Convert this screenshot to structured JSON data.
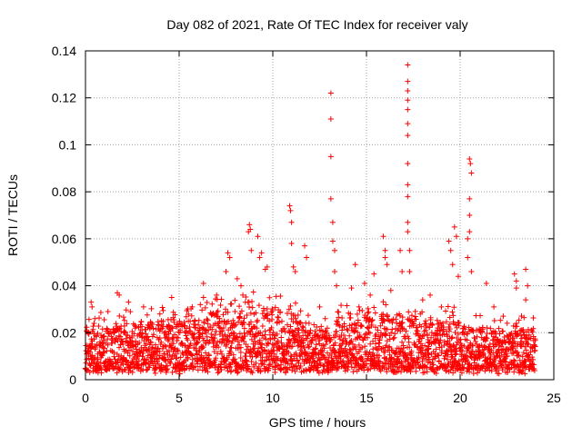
{
  "chart_data": {
    "type": "scatter",
    "title": "Day 082 of 2021, Rate Of TEC Index for receiver valy",
    "xlabel": "GPS time / hours",
    "ylabel": "ROTI / TECUs",
    "xlim": [
      0,
      25
    ],
    "ylim": [
      0,
      0.14
    ],
    "xticks": [
      0,
      5,
      10,
      15,
      20,
      25
    ],
    "yticks": [
      0,
      0.02,
      0.04,
      0.06,
      0.08,
      0.1,
      0.12,
      0.14
    ],
    "xtick_labels": [
      "0",
      "5",
      "10",
      "15",
      "20",
      "25"
    ],
    "ytick_labels": [
      "0",
      "0.02",
      "0.04",
      "0.06",
      "0.08",
      "0.1",
      "0.12",
      "0.14"
    ],
    "grid": true,
    "marker": "+",
    "color": "#ff0000",
    "series": [
      {
        "name": "ROTI",
        "points": [
          [
            0.3,
            0.033
          ],
          [
            0.35,
            0.031
          ],
          [
            0.5,
            0.026
          ],
          [
            1.2,
            0.029
          ],
          [
            1.7,
            0.037
          ],
          [
            1.8,
            0.036
          ],
          [
            2.3,
            0.033
          ],
          [
            3.1,
            0.031
          ],
          [
            4.6,
            0.035
          ],
          [
            5.7,
            0.031
          ],
          [
            6.3,
            0.041
          ],
          [
            6.3,
            0.035
          ],
          [
            7.0,
            0.036
          ],
          [
            7.5,
            0.046
          ],
          [
            7.6,
            0.054
          ],
          [
            7.7,
            0.052
          ],
          [
            8.1,
            0.043
          ],
          [
            8.3,
            0.04
          ],
          [
            8.4,
            0.036
          ],
          [
            8.7,
            0.063
          ],
          [
            8.75,
            0.066
          ],
          [
            8.8,
            0.064
          ],
          [
            8.85,
            0.055
          ],
          [
            9.2,
            0.061
          ],
          [
            9.3,
            0.052
          ],
          [
            9.4,
            0.054
          ],
          [
            9.6,
            0.047
          ],
          [
            9.7,
            0.048
          ],
          [
            10.9,
            0.074
          ],
          [
            10.95,
            0.072
          ],
          [
            11.0,
            0.067
          ],
          [
            11.0,
            0.058
          ],
          [
            11.1,
            0.048
          ],
          [
            11.2,
            0.046
          ],
          [
            11.7,
            0.057
          ],
          [
            11.8,
            0.052
          ],
          [
            12.5,
            0.031
          ],
          [
            12.8,
            0.026
          ],
          [
            13.1,
            0.122
          ],
          [
            13.1,
            0.111
          ],
          [
            13.1,
            0.095
          ],
          [
            13.1,
            0.077
          ],
          [
            13.2,
            0.067
          ],
          [
            13.2,
            0.059
          ],
          [
            13.3,
            0.055
          ],
          [
            13.3,
            0.046
          ],
          [
            13.4,
            0.04
          ],
          [
            14.2,
            0.039
          ],
          [
            14.4,
            0.049
          ],
          [
            14.6,
            0.031
          ],
          [
            14.9,
            0.041
          ],
          [
            15.2,
            0.036
          ],
          [
            15.4,
            0.045
          ],
          [
            15.9,
            0.061
          ],
          [
            16.0,
            0.055
          ],
          [
            16.0,
            0.052
          ],
          [
            16.1,
            0.049
          ],
          [
            16.3,
            0.038
          ],
          [
            16.8,
            0.055
          ],
          [
            16.9,
            0.046
          ],
          [
            17.2,
            0.134
          ],
          [
            17.2,
            0.127
          ],
          [
            17.2,
            0.123
          ],
          [
            17.2,
            0.119
          ],
          [
            17.2,
            0.115
          ],
          [
            17.2,
            0.109
          ],
          [
            17.2,
            0.104
          ],
          [
            17.2,
            0.092
          ],
          [
            17.2,
            0.083
          ],
          [
            17.2,
            0.078
          ],
          [
            17.2,
            0.067
          ],
          [
            17.2,
            0.063
          ],
          [
            17.3,
            0.055
          ],
          [
            17.3,
            0.046
          ],
          [
            18.0,
            0.034
          ],
          [
            18.4,
            0.036
          ],
          [
            19.0,
            0.031
          ],
          [
            19.4,
            0.059
          ],
          [
            19.5,
            0.055
          ],
          [
            19.6,
            0.049
          ],
          [
            19.7,
            0.065
          ],
          [
            19.8,
            0.061
          ],
          [
            19.9,
            0.044
          ],
          [
            20.5,
            0.094
          ],
          [
            20.55,
            0.092
          ],
          [
            20.6,
            0.088
          ],
          [
            20.5,
            0.077
          ],
          [
            20.5,
            0.07
          ],
          [
            20.5,
            0.063
          ],
          [
            20.4,
            0.06
          ],
          [
            20.4,
            0.052
          ],
          [
            20.6,
            0.046
          ],
          [
            21.4,
            0.041
          ],
          [
            21.8,
            0.031
          ],
          [
            22.3,
            0.027
          ],
          [
            22.9,
            0.045
          ],
          [
            23.0,
            0.042
          ],
          [
            23.0,
            0.039
          ],
          [
            23.5,
            0.047
          ],
          [
            23.6,
            0.04
          ],
          [
            23.5,
            0.034
          ]
        ]
      }
    ],
    "baseline": {
      "description": "dense ROTI band across the whole day",
      "x_range": [
        0,
        24
      ],
      "typical_min": 0.004,
      "typical_max": 0.022,
      "segments": [
        {
          "x": 0,
          "max": 0.022
        },
        {
          "x": 2,
          "max": 0.024
        },
        {
          "x": 4,
          "max": 0.025
        },
        {
          "x": 6,
          "max": 0.027
        },
        {
          "x": 8,
          "max": 0.031
        },
        {
          "x": 9,
          "max": 0.033
        },
        {
          "x": 10,
          "max": 0.031
        },
        {
          "x": 11,
          "max": 0.029
        },
        {
          "x": 12,
          "max": 0.022
        },
        {
          "x": 13,
          "max": 0.025
        },
        {
          "x": 14,
          "max": 0.027
        },
        {
          "x": 15,
          "max": 0.028
        },
        {
          "x": 16,
          "max": 0.028
        },
        {
          "x": 17,
          "max": 0.026
        },
        {
          "x": 18,
          "max": 0.026
        },
        {
          "x": 19,
          "max": 0.026
        },
        {
          "x": 20,
          "max": 0.025
        },
        {
          "x": 21,
          "max": 0.022
        },
        {
          "x": 22,
          "max": 0.02
        },
        {
          "x": 23,
          "max": 0.022
        },
        {
          "x": 24,
          "max": 0.022
        }
      ]
    }
  }
}
